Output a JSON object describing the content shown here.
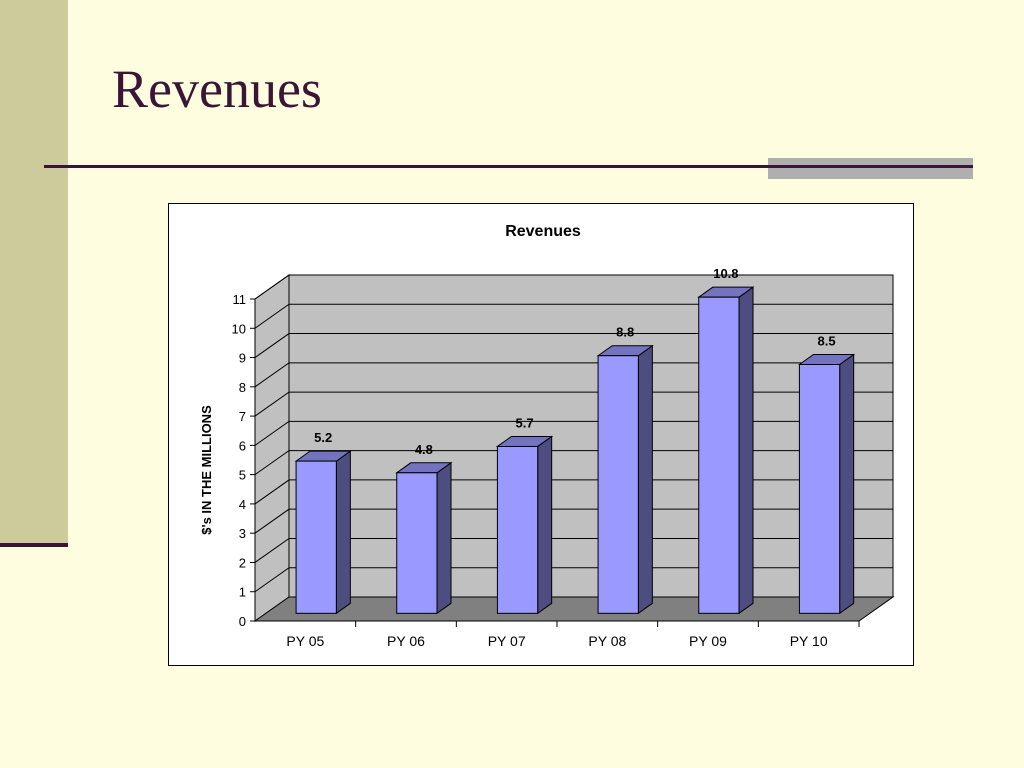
{
  "slide": {
    "title": "Revenues"
  },
  "colors": {
    "background": "#FFFDE0",
    "band": "#CDCB9B",
    "accent": "#3B1536",
    "bar_front": "#9999FF",
    "bar_side": "#4D4D80",
    "bar_top": "#7373C0",
    "plot_wall": "#C0C0C0",
    "plot_floor": "#808080"
  },
  "chart_data": {
    "type": "bar",
    "title": "Revenues",
    "ylabel": "$'s IN THE MILLIONS",
    "xlabel": "",
    "categories": [
      "PY 05",
      "PY 06",
      "PY 07",
      "PY 08",
      "PY 09",
      "PY 10"
    ],
    "values": [
      5.2,
      4.8,
      5.7,
      8.8,
      10.8,
      8.5
    ],
    "data_labels": [
      "5.2",
      "4.8",
      "5.7",
      "8.8",
      "10.8",
      "8.5"
    ],
    "ylim": [
      0,
      11
    ],
    "yticks": [
      "0",
      "1",
      "2",
      "3",
      "4",
      "5",
      "6",
      "7",
      "8",
      "9",
      "10",
      "11"
    ],
    "grid": true,
    "legend": "none",
    "style": "3d-column"
  }
}
